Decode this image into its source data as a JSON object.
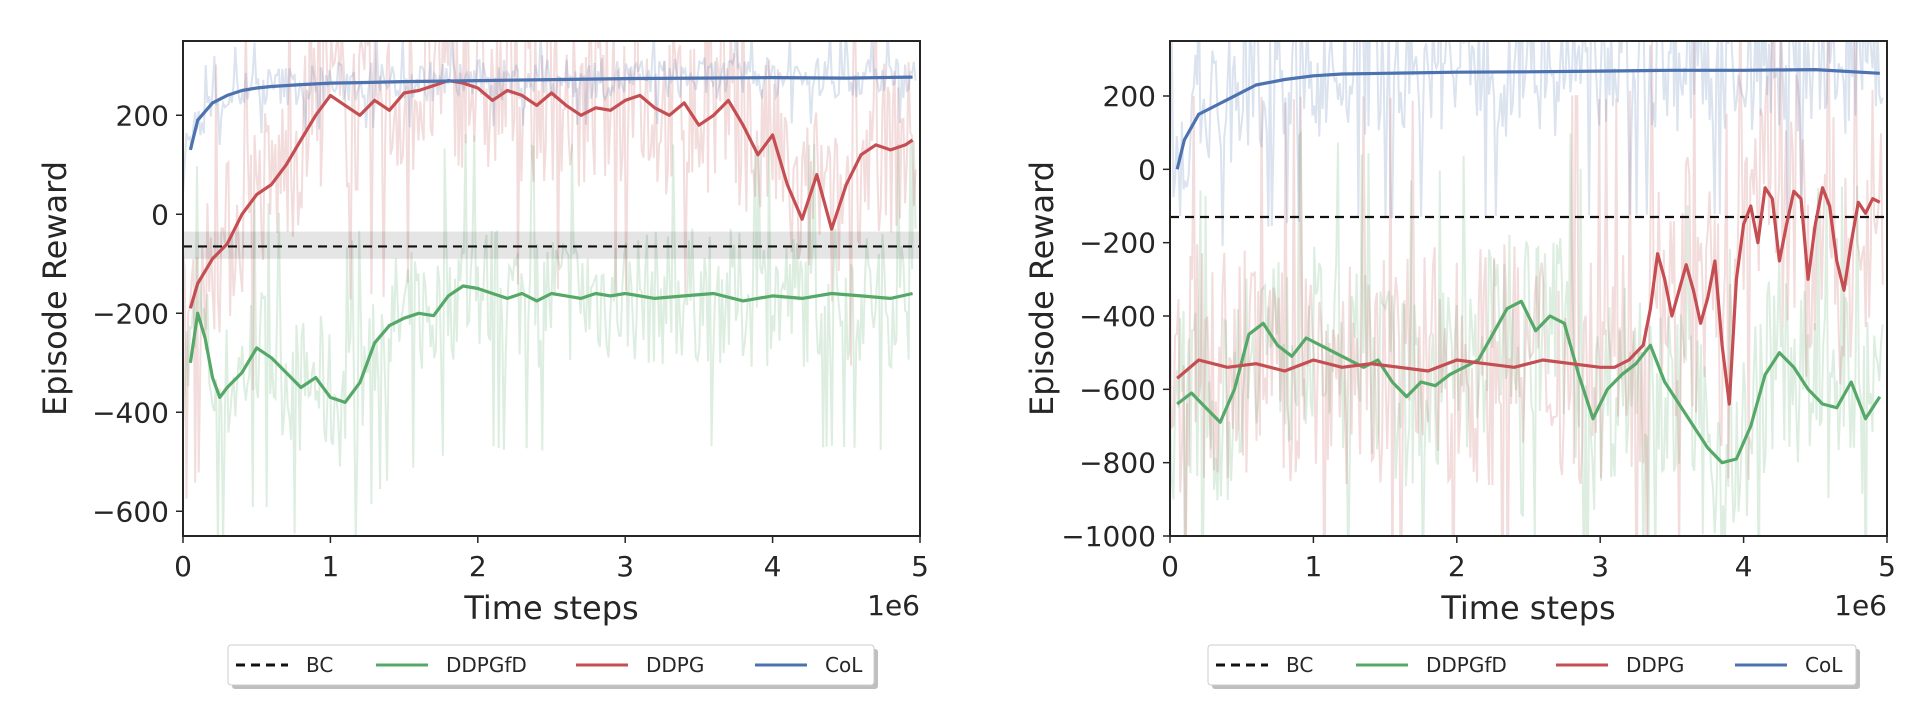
{
  "chart_data": [
    {
      "type": "line",
      "title": "",
      "xlabel": "Time steps",
      "ylabel": "Episode Reward",
      "x_offset_label": "1e6",
      "xlim": [
        0,
        5
      ],
      "ylim": [
        -650,
        350
      ],
      "xticks": [
        0,
        1,
        2,
        3,
        4,
        5
      ],
      "yticks": [
        -600,
        -400,
        -200,
        0,
        200
      ],
      "grid": false,
      "legend": {
        "placement": "bottom-center",
        "entries": [
          "BC",
          "DDPGfD",
          "DDPG",
          "CoL"
        ]
      },
      "bc": {
        "name": "BC",
        "value": -65,
        "band": [
          -90,
          -35
        ],
        "color": "#000000",
        "style": "dashed"
      },
      "series": [
        {
          "name": "DDPGfD",
          "color": "#55a868",
          "x": [
            0.05,
            0.1,
            0.15,
            0.2,
            0.25,
            0.3,
            0.4,
            0.5,
            0.6,
            0.7,
            0.8,
            0.9,
            1.0,
            1.1,
            1.2,
            1.3,
            1.4,
            1.5,
            1.6,
            1.7,
            1.8,
            1.9,
            2.0,
            2.1,
            2.2,
            2.3,
            2.4,
            2.5,
            2.6,
            2.7,
            2.8,
            2.9,
            3.0,
            3.2,
            3.4,
            3.6,
            3.8,
            4.0,
            4.2,
            4.4,
            4.6,
            4.8,
            4.95
          ],
          "y": [
            -300,
            -200,
            -250,
            -330,
            -370,
            -350,
            -320,
            -270,
            -290,
            -320,
            -350,
            -330,
            -370,
            -380,
            -340,
            -260,
            -225,
            -210,
            -200,
            -205,
            -165,
            -145,
            -150,
            -160,
            -170,
            -160,
            -175,
            -160,
            -165,
            -170,
            -160,
            -165,
            -160,
            -170,
            -165,
            -160,
            -175,
            -165,
            -170,
            -160,
            -165,
            -170,
            -160
          ],
          "band": [
            -550,
            -150
          ]
        },
        {
          "name": "DDPG",
          "color": "#c44e52",
          "x": [
            0.05,
            0.1,
            0.2,
            0.3,
            0.4,
            0.5,
            0.6,
            0.7,
            0.8,
            0.9,
            1.0,
            1.1,
            1.2,
            1.3,
            1.4,
            1.5,
            1.6,
            1.7,
            1.8,
            1.9,
            2.0,
            2.1,
            2.2,
            2.3,
            2.4,
            2.5,
            2.6,
            2.7,
            2.8,
            2.9,
            3.0,
            3.1,
            3.2,
            3.3,
            3.4,
            3.5,
            3.6,
            3.7,
            3.8,
            3.9,
            4.0,
            4.1,
            4.2,
            4.3,
            4.4,
            4.5,
            4.6,
            4.7,
            4.8,
            4.9,
            4.95
          ],
          "y": [
            -190,
            -140,
            -90,
            -60,
            0,
            40,
            60,
            100,
            150,
            200,
            240,
            220,
            200,
            230,
            210,
            245,
            250,
            260,
            270,
            265,
            255,
            230,
            250,
            240,
            220,
            245,
            220,
            200,
            215,
            210,
            230,
            240,
            215,
            200,
            225,
            180,
            200,
            230,
            180,
            120,
            160,
            60,
            -10,
            80,
            -30,
            60,
            120,
            140,
            130,
            140,
            150
          ],
          "band": [
            -200,
            300
          ]
        },
        {
          "name": "CoL",
          "color": "#4c72b0",
          "x": [
            0.05,
            0.1,
            0.2,
            0.3,
            0.4,
            0.5,
            0.6,
            0.8,
            1.0,
            1.2,
            1.5,
            2.0,
            2.5,
            3.0,
            3.5,
            4.0,
            4.5,
            4.95
          ],
          "y": [
            130,
            190,
            225,
            240,
            250,
            255,
            258,
            262,
            265,
            266,
            268,
            270,
            272,
            274,
            275,
            276,
            275,
            277
          ],
          "band": [
            180,
            300
          ]
        }
      ]
    },
    {
      "type": "line",
      "title": "",
      "xlabel": "Time steps",
      "ylabel": "Episode Reward",
      "x_offset_label": "1e6",
      "xlim": [
        0,
        5
      ],
      "ylim": [
        -1000,
        350
      ],
      "xticks": [
        0,
        1,
        2,
        3,
        4,
        5
      ],
      "yticks": [
        -1000,
        -800,
        -600,
        -400,
        -200,
        0,
        200
      ],
      "grid": false,
      "legend": {
        "placement": "bottom-center",
        "entries": [
          "BC",
          "DDPGfD",
          "DDPG",
          "CoL"
        ]
      },
      "bc": {
        "name": "BC",
        "value": -130,
        "color": "#000000",
        "style": "dashed"
      },
      "series": [
        {
          "name": "DDPGfD",
          "color": "#55a868",
          "x": [
            0.05,
            0.15,
            0.25,
            0.35,
            0.45,
            0.55,
            0.65,
            0.75,
            0.85,
            0.95,
            1.05,
            1.15,
            1.25,
            1.35,
            1.45,
            1.55,
            1.65,
            1.75,
            1.85,
            1.95,
            2.05,
            2.15,
            2.25,
            2.35,
            2.45,
            2.55,
            2.65,
            2.75,
            2.85,
            2.95,
            3.05,
            3.15,
            3.25,
            3.35,
            3.45,
            3.55,
            3.65,
            3.75,
            3.85,
            3.95,
            4.05,
            4.15,
            4.25,
            4.35,
            4.45,
            4.55,
            4.65,
            4.75,
            4.85,
            4.95
          ],
          "y": [
            -640,
            -610,
            -650,
            -690,
            -600,
            -450,
            -420,
            -480,
            -510,
            -460,
            -480,
            -500,
            -520,
            -540,
            -520,
            -580,
            -620,
            -580,
            -590,
            -560,
            -540,
            -520,
            -450,
            -380,
            -360,
            -440,
            -400,
            -420,
            -560,
            -680,
            -600,
            -560,
            -530,
            -480,
            -580,
            -640,
            -700,
            -760,
            -800,
            -790,
            -700,
            -560,
            -500,
            -540,
            -600,
            -640,
            -650,
            -580,
            -680,
            -620
          ],
          "band": [
            -950,
            -200
          ]
        },
        {
          "name": "DDPG",
          "color": "#c44e52",
          "x": [
            0.05,
            0.2,
            0.4,
            0.6,
            0.8,
            1.0,
            1.2,
            1.4,
            1.6,
            1.8,
            2.0,
            2.2,
            2.4,
            2.6,
            2.8,
            3.0,
            3.1,
            3.2,
            3.3,
            3.35,
            3.4,
            3.45,
            3.5,
            3.55,
            3.6,
            3.65,
            3.7,
            3.75,
            3.8,
            3.85,
            3.9,
            3.95,
            4.0,
            4.05,
            4.1,
            4.15,
            4.2,
            4.25,
            4.3,
            4.35,
            4.4,
            4.45,
            4.5,
            4.55,
            4.6,
            4.65,
            4.7,
            4.75,
            4.8,
            4.85,
            4.9,
            4.95
          ],
          "y": [
            -570,
            -520,
            -540,
            -530,
            -550,
            -520,
            -540,
            -530,
            -540,
            -550,
            -520,
            -530,
            -540,
            -520,
            -530,
            -540,
            -540,
            -520,
            -480,
            -380,
            -230,
            -300,
            -400,
            -330,
            -260,
            -330,
            -420,
            -350,
            -250,
            -480,
            -640,
            -300,
            -150,
            -100,
            -200,
            -50,
            -80,
            -250,
            -150,
            -60,
            -80,
            -300,
            -150,
            -50,
            -100,
            -250,
            -330,
            -200,
            -90,
            -120,
            -80,
            -90
          ],
          "band": [
            -950,
            0
          ]
        },
        {
          "name": "CoL",
          "color": "#4c72b0",
          "x": [
            0.05,
            0.1,
            0.2,
            0.3,
            0.4,
            0.5,
            0.6,
            0.8,
            1.0,
            1.2,
            1.5,
            2.0,
            2.5,
            3.0,
            3.5,
            4.0,
            4.5,
            4.95
          ],
          "y": [
            0,
            80,
            150,
            170,
            190,
            210,
            230,
            245,
            255,
            260,
            262,
            265,
            266,
            268,
            270,
            270,
            272,
            262
          ],
          "band": [
            -200,
            310
          ]
        }
      ]
    }
  ]
}
